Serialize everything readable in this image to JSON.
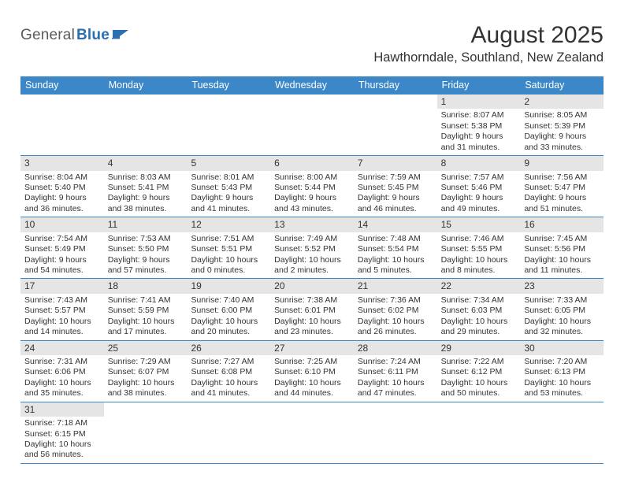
{
  "logo": {
    "part1": "General",
    "part2": "Blue"
  },
  "title": "August 2025",
  "location": "Hawthorndale, Southland, New Zealand",
  "colors": {
    "header_bg": "#3b87c8",
    "header_text": "#ffffff",
    "daynum_bg": "#e5e5e5",
    "row_border": "#3b87c8",
    "text": "#333333",
    "logo_gray": "#5a5a5a",
    "logo_blue": "#2a6fb0"
  },
  "weekdays": [
    "Sunday",
    "Monday",
    "Tuesday",
    "Wednesday",
    "Thursday",
    "Friday",
    "Saturday"
  ],
  "calendar": {
    "first_weekday_index": 5,
    "num_days": 31
  },
  "days": {
    "1": {
      "sunrise": "8:07 AM",
      "sunset": "5:38 PM",
      "daylight": "9 hours and 31 minutes."
    },
    "2": {
      "sunrise": "8:05 AM",
      "sunset": "5:39 PM",
      "daylight": "9 hours and 33 minutes."
    },
    "3": {
      "sunrise": "8:04 AM",
      "sunset": "5:40 PM",
      "daylight": "9 hours and 36 minutes."
    },
    "4": {
      "sunrise": "8:03 AM",
      "sunset": "5:41 PM",
      "daylight": "9 hours and 38 minutes."
    },
    "5": {
      "sunrise": "8:01 AM",
      "sunset": "5:43 PM",
      "daylight": "9 hours and 41 minutes."
    },
    "6": {
      "sunrise": "8:00 AM",
      "sunset": "5:44 PM",
      "daylight": "9 hours and 43 minutes."
    },
    "7": {
      "sunrise": "7:59 AM",
      "sunset": "5:45 PM",
      "daylight": "9 hours and 46 minutes."
    },
    "8": {
      "sunrise": "7:57 AM",
      "sunset": "5:46 PM",
      "daylight": "9 hours and 49 minutes."
    },
    "9": {
      "sunrise": "7:56 AM",
      "sunset": "5:47 PM",
      "daylight": "9 hours and 51 minutes."
    },
    "10": {
      "sunrise": "7:54 AM",
      "sunset": "5:49 PM",
      "daylight": "9 hours and 54 minutes."
    },
    "11": {
      "sunrise": "7:53 AM",
      "sunset": "5:50 PM",
      "daylight": "9 hours and 57 minutes."
    },
    "12": {
      "sunrise": "7:51 AM",
      "sunset": "5:51 PM",
      "daylight": "10 hours and 0 minutes."
    },
    "13": {
      "sunrise": "7:49 AM",
      "sunset": "5:52 PM",
      "daylight": "10 hours and 2 minutes."
    },
    "14": {
      "sunrise": "7:48 AM",
      "sunset": "5:54 PM",
      "daylight": "10 hours and 5 minutes."
    },
    "15": {
      "sunrise": "7:46 AM",
      "sunset": "5:55 PM",
      "daylight": "10 hours and 8 minutes."
    },
    "16": {
      "sunrise": "7:45 AM",
      "sunset": "5:56 PM",
      "daylight": "10 hours and 11 minutes."
    },
    "17": {
      "sunrise": "7:43 AM",
      "sunset": "5:57 PM",
      "daylight": "10 hours and 14 minutes."
    },
    "18": {
      "sunrise": "7:41 AM",
      "sunset": "5:59 PM",
      "daylight": "10 hours and 17 minutes."
    },
    "19": {
      "sunrise": "7:40 AM",
      "sunset": "6:00 PM",
      "daylight": "10 hours and 20 minutes."
    },
    "20": {
      "sunrise": "7:38 AM",
      "sunset": "6:01 PM",
      "daylight": "10 hours and 23 minutes."
    },
    "21": {
      "sunrise": "7:36 AM",
      "sunset": "6:02 PM",
      "daylight": "10 hours and 26 minutes."
    },
    "22": {
      "sunrise": "7:34 AM",
      "sunset": "6:03 PM",
      "daylight": "10 hours and 29 minutes."
    },
    "23": {
      "sunrise": "7:33 AM",
      "sunset": "6:05 PM",
      "daylight": "10 hours and 32 minutes."
    },
    "24": {
      "sunrise": "7:31 AM",
      "sunset": "6:06 PM",
      "daylight": "10 hours and 35 minutes."
    },
    "25": {
      "sunrise": "7:29 AM",
      "sunset": "6:07 PM",
      "daylight": "10 hours and 38 minutes."
    },
    "26": {
      "sunrise": "7:27 AM",
      "sunset": "6:08 PM",
      "daylight": "10 hours and 41 minutes."
    },
    "27": {
      "sunrise": "7:25 AM",
      "sunset": "6:10 PM",
      "daylight": "10 hours and 44 minutes."
    },
    "28": {
      "sunrise": "7:24 AM",
      "sunset": "6:11 PM",
      "daylight": "10 hours and 47 minutes."
    },
    "29": {
      "sunrise": "7:22 AM",
      "sunset": "6:12 PM",
      "daylight": "10 hours and 50 minutes."
    },
    "30": {
      "sunrise": "7:20 AM",
      "sunset": "6:13 PM",
      "daylight": "10 hours and 53 minutes."
    },
    "31": {
      "sunrise": "7:18 AM",
      "sunset": "6:15 PM",
      "daylight": "10 hours and 56 minutes."
    }
  }
}
